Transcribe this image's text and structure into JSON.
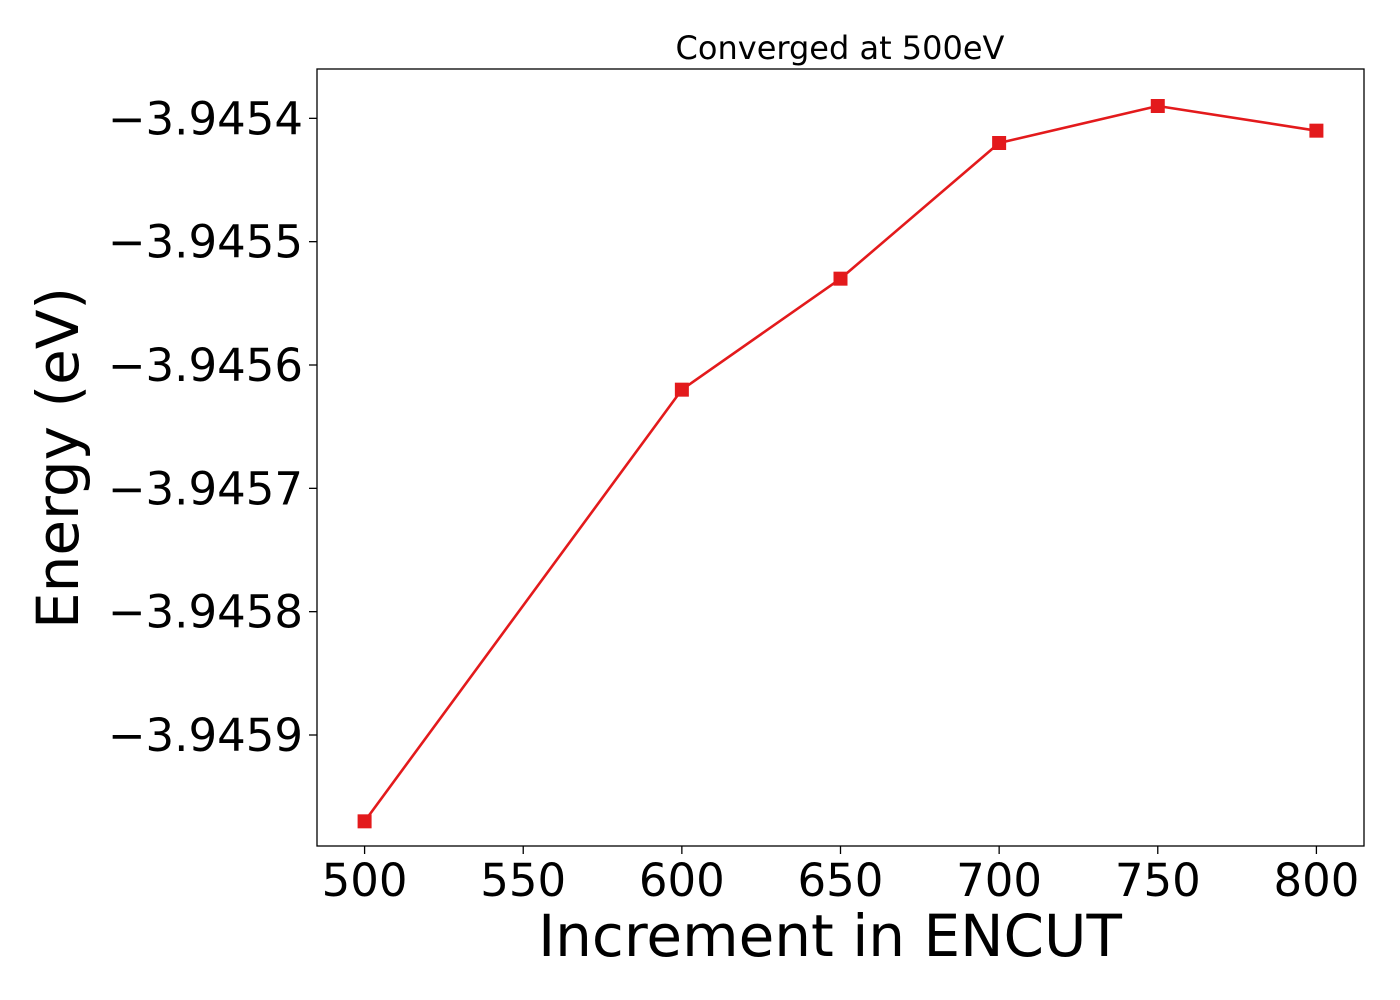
{
  "chart_data": {
    "type": "line",
    "title": "Converged at 500eV",
    "xlabel": "Increment in ENCUT",
    "ylabel": "Energy (eV)",
    "xlim": [
      485,
      815
    ],
    "ylim": [
      -3.94599,
      -3.94536
    ],
    "x_ticks": [
      500,
      550,
      600,
      650,
      700,
      750,
      800
    ],
    "x_tick_labels": [
      "500",
      "550",
      "600",
      "650",
      "700",
      "750",
      "800"
    ],
    "y_ticks": [
      -3.9454,
      -3.9455,
      -3.9456,
      -3.9457,
      -3.9458,
      -3.9459
    ],
    "y_tick_labels": [
      "−3.9454",
      "−3.9455",
      "−3.9456",
      "−3.9457",
      "−3.9458",
      "−3.9459"
    ],
    "grid": false,
    "legend": false,
    "series": [
      {
        "color": "#e31a1c",
        "marker": "square",
        "x": [
          500,
          600,
          650,
          700,
          750,
          800
        ],
        "y": [
          -3.94597,
          -3.94562,
          -3.94553,
          -3.94542,
          -3.94539,
          -3.94541
        ]
      }
    ]
  }
}
